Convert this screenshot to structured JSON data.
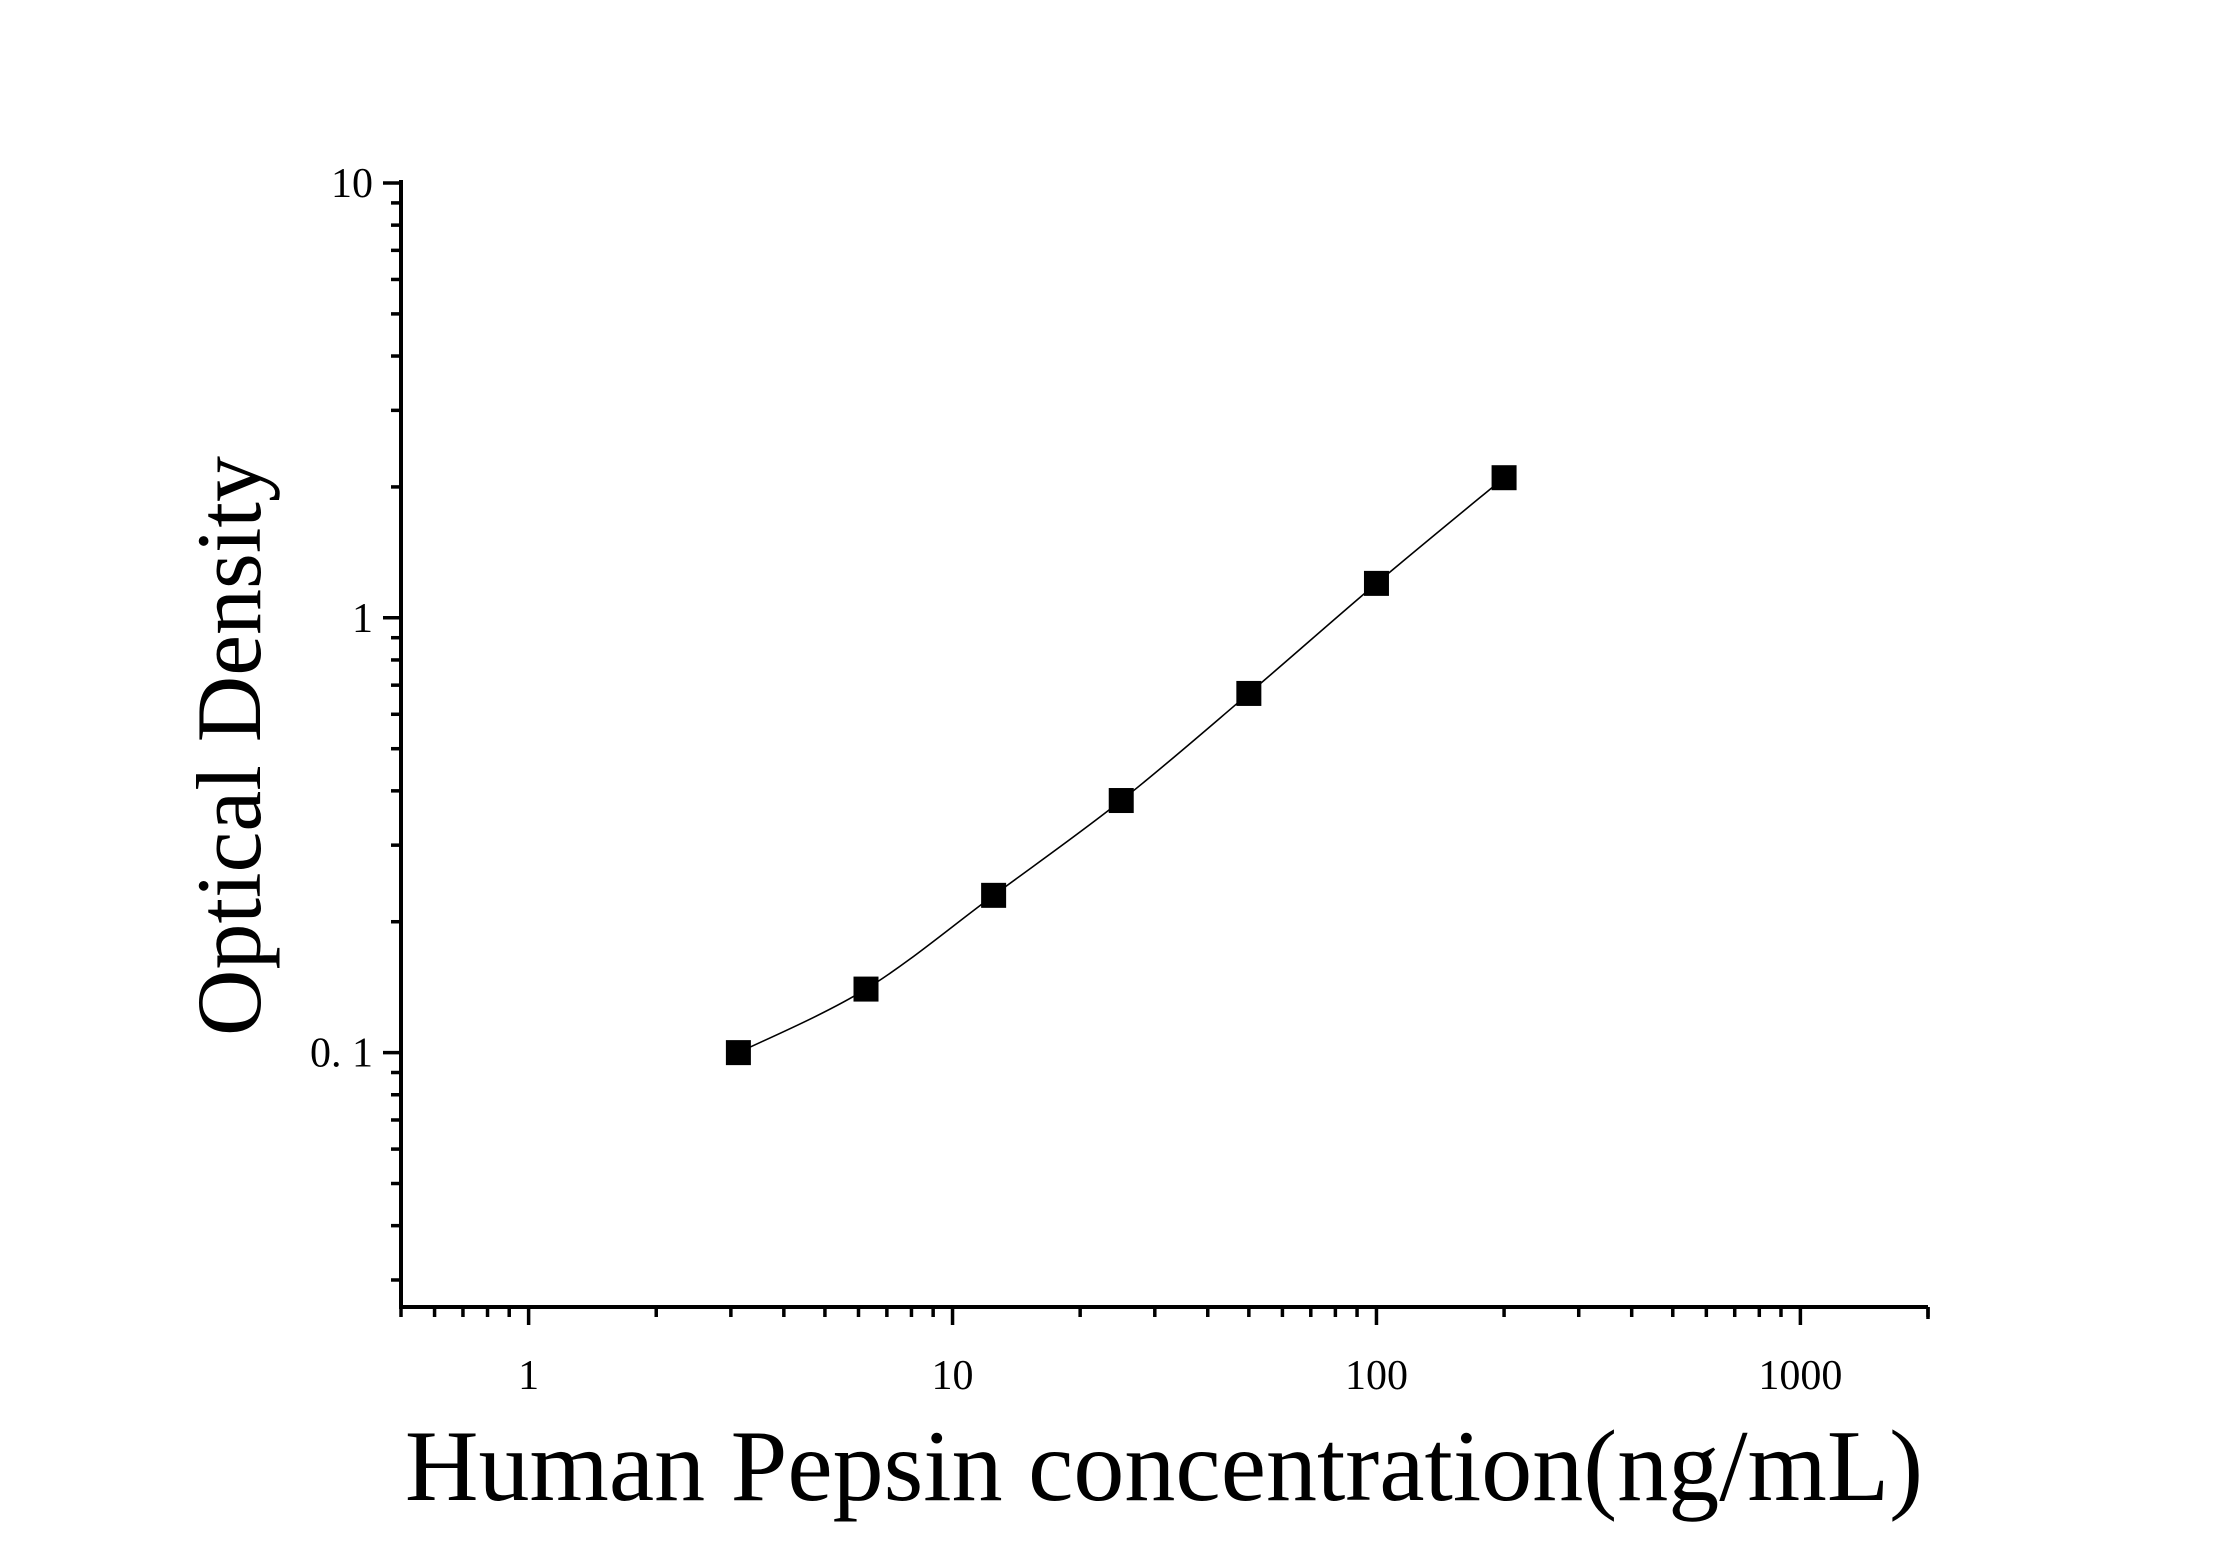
{
  "chart_data": {
    "type": "scatter",
    "title": "",
    "xlabel": "Human Pepsin concentration(ng/mL)",
    "ylabel": "Optical Density",
    "xscale": "log",
    "yscale": "log",
    "xlim": [
      0.5,
      2000
    ],
    "ylim": [
      0.026,
      10
    ],
    "x_tick_labels": [
      "1",
      "10",
      "100",
      "1000"
    ],
    "x_tick_values": [
      1,
      10,
      100,
      1000
    ],
    "y_tick_labels": [
      "0. 1",
      "1",
      "10"
    ],
    "y_tick_values": [
      0.1,
      1,
      10
    ],
    "grid": false,
    "legend": "none",
    "marker": "square",
    "fit_line": true,
    "series": [
      {
        "x": [
          3.125,
          6.25,
          12.5,
          25,
          50,
          100,
          200
        ],
        "y": [
          0.1,
          0.14,
          0.23,
          0.38,
          0.67,
          1.2,
          2.1
        ]
      }
    ]
  }
}
